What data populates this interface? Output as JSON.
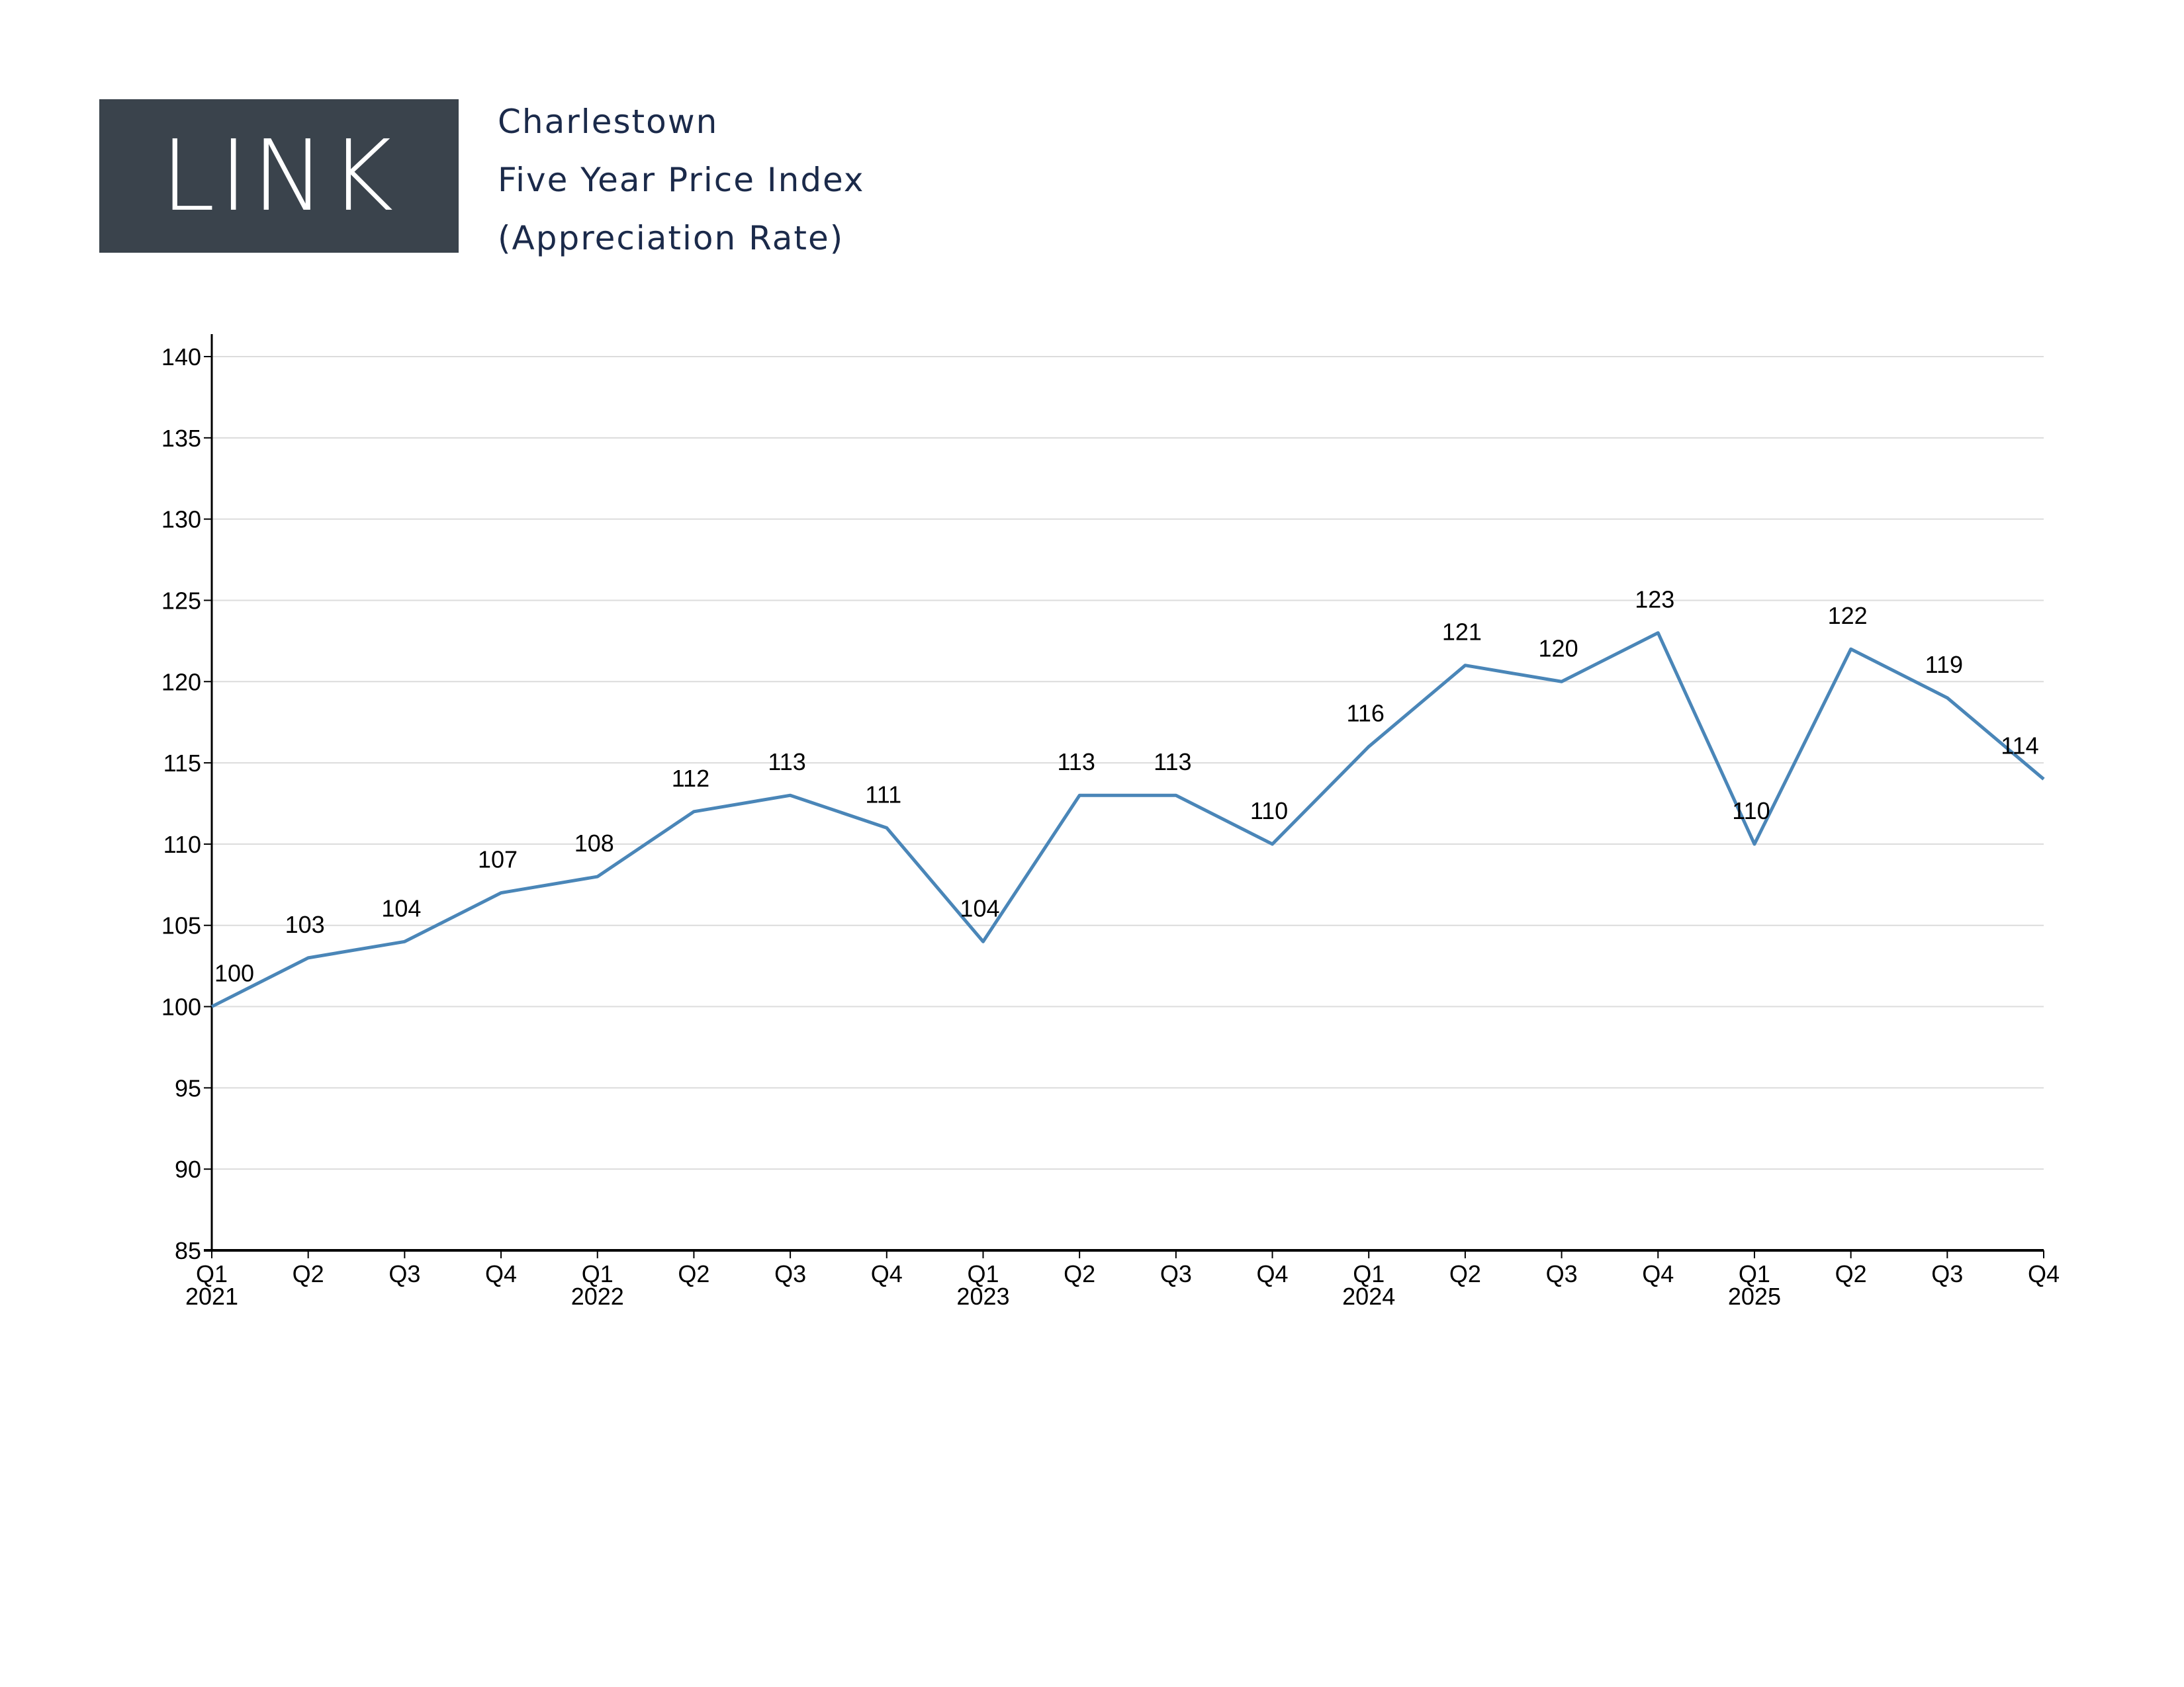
{
  "logo": {
    "text": "LINK"
  },
  "header": {
    "title_lines": [
      "Charlestown",
      "Five Year Price Index",
      "(Appreciation Rate)"
    ]
  },
  "colors": {
    "line": "#4a86b8",
    "logo_bg": "#3a434c",
    "title": "#1b2a4a"
  },
  "chart_data": {
    "type": "line",
    "title": "",
    "xlabel": "",
    "ylabel": "",
    "ylim": [
      85,
      140
    ],
    "yticks": [
      85,
      90,
      95,
      100,
      105,
      110,
      115,
      120,
      125,
      130,
      135,
      140
    ],
    "grid": "horizontal",
    "categories": [
      "Q1 2021",
      "Q2 2021",
      "Q3 2021",
      "Q4 2021",
      "Q1 2022",
      "Q2 2022",
      "Q3 2022",
      "Q4 2022",
      "Q1 2023",
      "Q2 2023",
      "Q3 2023",
      "Q4 2023",
      "Q1 2024",
      "Q2 2024",
      "Q3 2024",
      "Q4 2024",
      "Q1 2025",
      "Q2 2025",
      "Q3 2025",
      "Q4 2025"
    ],
    "quarter_labels": [
      "Q1",
      "Q2",
      "Q3",
      "Q4",
      "Q1",
      "Q2",
      "Q3",
      "Q4",
      "Q1",
      "Q2",
      "Q3",
      "Q4",
      "Q1",
      "Q2",
      "Q3",
      "Q4",
      "Q1",
      "Q2",
      "Q3",
      "Q4"
    ],
    "year_labels": [
      "2021",
      "",
      "",
      "",
      "2022",
      "",
      "",
      "",
      "2023",
      "",
      "",
      "",
      "2024",
      "",
      "",
      "",
      "2025",
      "",
      "",
      ""
    ],
    "series": [
      {
        "values": [
          100,
          103,
          104,
          107,
          108,
          112,
          113,
          111,
          104,
          113,
          113,
          110,
          116,
          121,
          120,
          123,
          110,
          122,
          119,
          114
        ]
      }
    ]
  }
}
